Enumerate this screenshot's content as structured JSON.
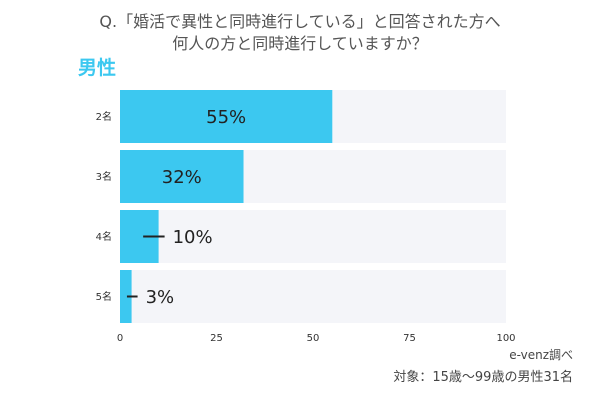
{
  "colors": {
    "bar": "#3cc8f0",
    "track": "#f4f5f9",
    "accent": "#3cc8f0",
    "title_text": "#555555",
    "leader_line": "#222222"
  },
  "chart_data": {
    "type": "bar",
    "orientation": "horizontal",
    "title": [
      "Q.「婚活で異性と同時進行している」と回答された方へ",
      "何人の方と同時進行していますか？"
    ],
    "subtitle": "男性",
    "categories": [
      "2名",
      "3名",
      "4名",
      "5名"
    ],
    "values": [
      55,
      32,
      10,
      3
    ],
    "unit": "%",
    "data_labels": [
      "55%",
      "32%",
      "10%",
      "3%"
    ],
    "xlim": [
      0,
      100
    ],
    "xticks": [
      0,
      25,
      50,
      75,
      100
    ],
    "xlabel": "",
    "ylabel": "",
    "grid": false,
    "legend": "none"
  },
  "footer": {
    "source": "e-venz調べ",
    "sample": "対象：15歳〜99歳の男性31名"
  }
}
